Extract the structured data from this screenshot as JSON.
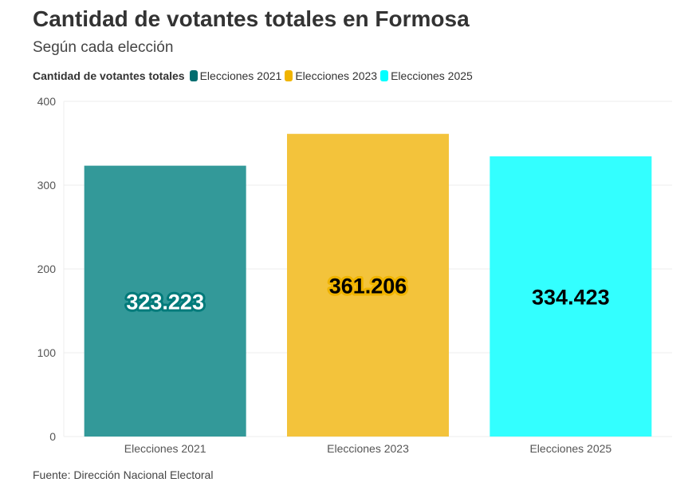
{
  "title": "Cantidad de votantes totales en Formosa",
  "subtitle": "Según cada elección",
  "source": "Fuente: Dirección Nacional Electoral",
  "chart_data": {
    "type": "bar",
    "legend_title": "Cantidad de votantes totales",
    "legend_placement": "top-left",
    "categories": [
      "Elecciones 2021",
      "Elecciones 2023",
      "Elecciones 2025"
    ],
    "values": [
      323.223,
      361.206,
      334.423
    ],
    "data_labels": [
      "323.223",
      "361.206",
      "334.423"
    ],
    "colors": [
      "#006d6f",
      "#f0b400",
      "#00ffff"
    ],
    "bar_colors": [
      "#339999",
      "#f3c33b",
      "#33ffff"
    ],
    "label_colors": [
      "#ffffff",
      "#000000",
      "#000000"
    ],
    "ylim": [
      0,
      400
    ],
    "yticks": [
      0,
      100,
      200,
      300,
      400
    ],
    "grid": true
  }
}
